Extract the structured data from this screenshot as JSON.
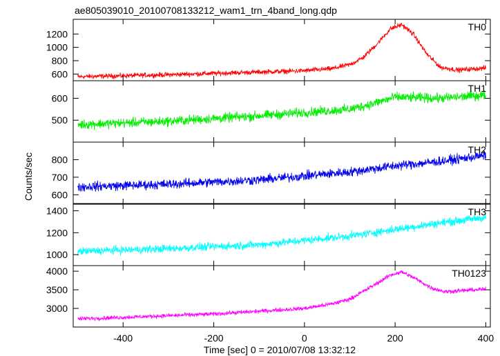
{
  "chart_data": {
    "type": "line",
    "title": "ae805039010_20100708133212_wam1_trn_4band_long.qdp",
    "xlabel": "Time [sec] 0 = 2010/07/08 13:32:12",
    "ylabel": "Counts/sec",
    "xlim": [
      -510,
      410
    ],
    "xticks": [
      -400,
      -200,
      0,
      200,
      400
    ],
    "grid": false,
    "series": [
      {
        "name": "TH0",
        "color": "#ff0000",
        "ylim": [
          500,
          1420
        ],
        "yticks": [
          600,
          800,
          1000,
          1200
        ],
        "x": [
          -500,
          -400,
          -300,
          -200,
          -100,
          0,
          60,
          100,
          130,
          160,
          190,
          215,
          240,
          270,
          300,
          340,
          400
        ],
        "y": [
          560,
          575,
          590,
          610,
          630,
          650,
          680,
          740,
          850,
          1050,
          1280,
          1340,
          1200,
          900,
          700,
          660,
          690
        ],
        "noise": 30
      },
      {
        "name": "TH1",
        "color": "#00ee00",
        "ylim": [
          400,
          680
        ],
        "yticks": [
          500,
          600
        ],
        "x": [
          -500,
          -300,
          -100,
          100,
          150,
          200,
          300,
          400
        ],
        "y": [
          480,
          495,
          520,
          550,
          575,
          605,
          600,
          615
        ],
        "noise": 18
      },
      {
        "name": "TH2",
        "color": "#0000ee",
        "ylim": [
          550,
          900
        ],
        "yticks": [
          600,
          700,
          800
        ],
        "x": [
          -500,
          -300,
          -100,
          100,
          200,
          300,
          400
        ],
        "y": [
          645,
          660,
          685,
          730,
          765,
          790,
          825
        ],
        "noise": 22
      },
      {
        "name": "TH3",
        "color": "#00ffff",
        "ylim": [
          900,
          1460
        ],
        "yticks": [
          1000,
          1200,
          1400
        ],
        "x": [
          -500,
          -300,
          -100,
          100,
          200,
          300,
          400
        ],
        "y": [
          1030,
          1055,
          1090,
          1170,
          1230,
          1290,
          1340
        ],
        "noise": 30
      },
      {
        "name": "TH0123",
        "color": "#ff00ff",
        "ylim": [
          2500,
          4150
        ],
        "yticks": [
          3000,
          3500,
          4000
        ],
        "x": [
          -500,
          -400,
          -200,
          0,
          60,
          100,
          150,
          190,
          215,
          245,
          280,
          310,
          350,
          400
        ],
        "y": [
          2720,
          2760,
          2850,
          3000,
          3120,
          3250,
          3600,
          3900,
          3980,
          3800,
          3550,
          3450,
          3480,
          3520
        ],
        "noise": 45
      }
    ]
  }
}
